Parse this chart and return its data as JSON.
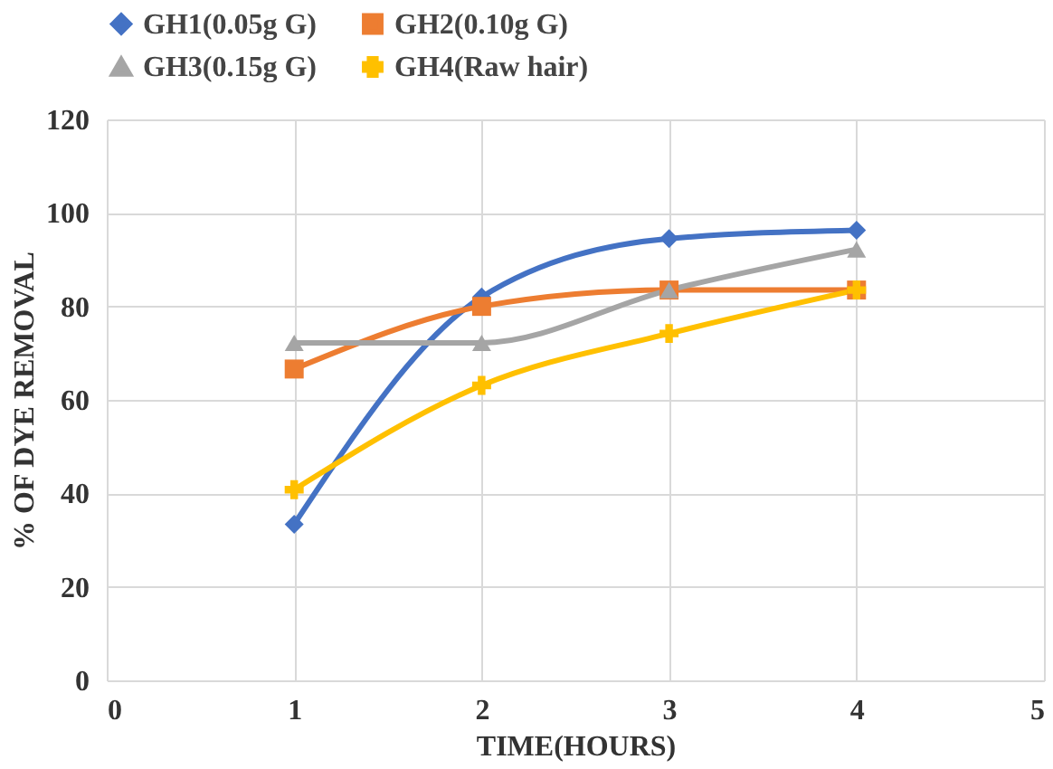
{
  "chart_data": {
    "type": "line",
    "xlabel": "TIME(HOURS)",
    "ylabel": "% OF DYE REMOVAL",
    "x": [
      1,
      2,
      3,
      4
    ],
    "series": [
      {
        "name": "GH1(0.05g G)",
        "color": "#4472c4",
        "marker": "diamond",
        "values": [
          33.4,
          82,
          94.5,
          96.3
        ]
      },
      {
        "name": "GH2(0.10g G)",
        "color": "#ed7d31",
        "marker": "square",
        "values": [
          66.6,
          80,
          83.5,
          83.5
        ]
      },
      {
        "name": "GH3(0.15g G)",
        "color": "#a5a5a5",
        "marker": "triangle",
        "values": [
          72.2,
          72.2,
          83.5,
          92.2
        ]
      },
      {
        "name": "GH4(Raw hair)",
        "color": "#ffc000",
        "marker": "cross",
        "values": [
          40.8,
          63.1,
          74.2,
          83.5
        ]
      }
    ],
    "xlim": [
      0,
      5
    ],
    "xticks": [
      0,
      1,
      2,
      3,
      4,
      5
    ],
    "ylim": [
      0,
      120
    ],
    "yticks": [
      0,
      20,
      40,
      60,
      80,
      100,
      120
    ],
    "grid": true,
    "legend": "top",
    "line_style": "solid"
  }
}
